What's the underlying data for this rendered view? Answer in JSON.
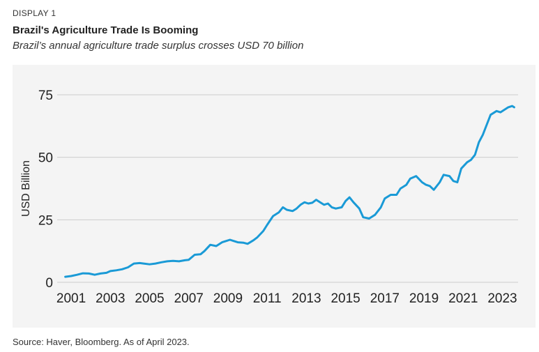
{
  "header": {
    "display_label": "DISPLAY 1",
    "title": "Brazil's Agriculture Trade Is Booming",
    "subtitle": "Brazil’s annual agriculture trade surplus crosses USD 70 billion"
  },
  "footer": {
    "source": "Source: Haver, Bloomberg. As of April 2023."
  },
  "colors": {
    "line": "#1a9ad6",
    "grid": "#cccccc",
    "panel": "#f4f4f4"
  },
  "chart_data": {
    "type": "line",
    "title": "Brazil's Agriculture Trade Is Booming",
    "subtitle": "Brazil’s annual agriculture trade surplus crosses USD 70 billion",
    "xlabel": "",
    "ylabel": "USD Billion",
    "xlim": [
      2000.5,
      2023.8
    ],
    "ylim": [
      0,
      75
    ],
    "x_ticks": [
      2001,
      2003,
      2005,
      2007,
      2009,
      2011,
      2013,
      2015,
      2017,
      2019,
      2021,
      2023
    ],
    "y_ticks": [
      0,
      25,
      50,
      75
    ],
    "grid": true,
    "legend": "none",
    "series": [
      {
        "name": "Agriculture trade surplus",
        "x": [
          2000.7,
          2001.0,
          2001.3,
          2001.6,
          2001.9,
          2002.2,
          2002.5,
          2002.8,
          2003.0,
          2003.3,
          2003.6,
          2003.9,
          2004.2,
          2004.5,
          2004.7,
          2005.0,
          2005.3,
          2005.6,
          2005.9,
          2006.2,
          2006.5,
          2006.8,
          2007.0,
          2007.3,
          2007.6,
          2007.8,
          2008.1,
          2008.4,
          2008.7,
          2008.9,
          2009.1,
          2009.3,
          2009.5,
          2009.8,
          2010.0,
          2010.3,
          2010.5,
          2010.8,
          2011.0,
          2011.3,
          2011.6,
          2011.8,
          2012.0,
          2012.3,
          2012.5,
          2012.7,
          2012.9,
          2013.1,
          2013.3,
          2013.5,
          2013.7,
          2013.9,
          2014.1,
          2014.3,
          2014.5,
          2014.8,
          2015.0,
          2015.2,
          2015.4,
          2015.7,
          2015.9,
          2016.2,
          2016.5,
          2016.8,
          2017.0,
          2017.3,
          2017.6,
          2017.8,
          2018.1,
          2018.3,
          2018.6,
          2018.9,
          2019.1,
          2019.3,
          2019.5,
          2019.8,
          2020.0,
          2020.3,
          2020.5,
          2020.7,
          2020.9,
          2021.2,
          2021.4,
          2021.6,
          2021.8,
          2022.0,
          2022.2,
          2022.4,
          2022.7,
          2022.9,
          2023.1,
          2023.3,
          2023.5,
          2023.6
        ],
        "values": [
          2.2,
          2.5,
          3.0,
          3.6,
          3.5,
          3.0,
          3.5,
          3.8,
          4.5,
          4.8,
          5.2,
          6.0,
          7.5,
          7.7,
          7.5,
          7.2,
          7.5,
          8.0,
          8.4,
          8.6,
          8.4,
          8.8,
          9.0,
          11.0,
          11.2,
          12.5,
          15.0,
          14.5,
          16.0,
          16.5,
          17.0,
          16.5,
          16.0,
          15.8,
          15.4,
          16.8,
          18.0,
          20.5,
          23.0,
          26.5,
          28.0,
          30.0,
          29.0,
          28.5,
          29.5,
          31.0,
          32.0,
          31.5,
          31.8,
          33.0,
          32.0,
          31.0,
          31.5,
          30.0,
          29.5,
          30.0,
          32.5,
          34.0,
          32.0,
          29.5,
          26.0,
          25.5,
          27.0,
          30.0,
          33.5,
          35.0,
          35.0,
          37.5,
          39.0,
          41.5,
          42.5,
          40.0,
          39.0,
          38.5,
          37.0,
          40.0,
          43.0,
          42.5,
          40.5,
          40.0,
          45.5,
          48.0,
          49.0,
          51.0,
          56.0,
          59.0,
          63.0,
          67.0,
          68.5,
          68.0,
          69.0,
          70.0,
          70.5,
          70.0
        ]
      }
    ]
  }
}
